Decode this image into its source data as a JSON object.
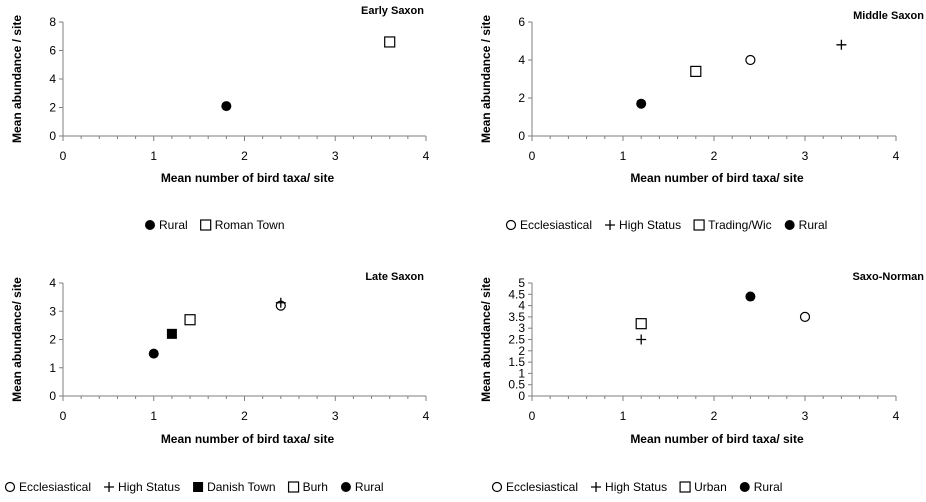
{
  "chart_data": [
    {
      "type": "scatter",
      "title": "Early Saxon",
      "xlabel": "Mean number of bird taxa/ site",
      "ylabel": "Mean abundance / site",
      "xlim": [
        0,
        4
      ],
      "ylim": [
        0,
        8
      ],
      "xticks": [
        0,
        1,
        2,
        3,
        4
      ],
      "yticks": [
        0,
        2,
        4,
        6,
        8
      ],
      "grid": false,
      "legend_position": "bottom",
      "series": [
        {
          "name": "Rural",
          "marker": "filled-circle",
          "points": [
            [
              1.8,
              2.1
            ]
          ]
        },
        {
          "name": "Roman Town",
          "marker": "open-square",
          "points": [
            [
              3.6,
              6.6
            ]
          ]
        }
      ]
    },
    {
      "type": "scatter",
      "title": "Middle Saxon",
      "xlabel": "Mean number of bird taxa/ site",
      "ylabel": "Mean abundance / site",
      "xlim": [
        0,
        4
      ],
      "ylim": [
        0,
        6
      ],
      "xticks": [
        0,
        1,
        2,
        3,
        4
      ],
      "yticks": [
        0,
        2,
        4,
        6
      ],
      "grid": false,
      "legend_position": "bottom",
      "series": [
        {
          "name": "Ecclesiastical",
          "marker": "open-circle",
          "points": [
            [
              2.4,
              4.0
            ]
          ]
        },
        {
          "name": "High Status",
          "marker": "plus",
          "points": [
            [
              3.4,
              4.8
            ]
          ]
        },
        {
          "name": "Trading/Wic",
          "marker": "open-square",
          "points": [
            [
              1.8,
              3.4
            ]
          ]
        },
        {
          "name": "Rural",
          "marker": "filled-circle",
          "points": [
            [
              1.2,
              1.7
            ]
          ]
        }
      ]
    },
    {
      "type": "scatter",
      "title": "Late Saxon",
      "xlabel": "Mean number of bird taxa/ site",
      "ylabel": "Mean abundance/ site",
      "xlim": [
        0,
        4
      ],
      "ylim": [
        0,
        4
      ],
      "xticks": [
        0,
        1,
        2,
        3,
        4
      ],
      "yticks": [
        0,
        1,
        2,
        3,
        4
      ],
      "grid": false,
      "legend_position": "bottom",
      "series": [
        {
          "name": "Ecclesiastical",
          "marker": "open-circle",
          "points": [
            [
              2.4,
              3.2
            ]
          ]
        },
        {
          "name": "High Status",
          "marker": "plus",
          "points": [
            [
              2.4,
              3.3
            ]
          ]
        },
        {
          "name": "Danish Town",
          "marker": "filled-square",
          "points": [
            [
              1.2,
              2.2
            ]
          ]
        },
        {
          "name": "Burh",
          "marker": "open-square",
          "points": [
            [
              1.4,
              2.7
            ]
          ]
        },
        {
          "name": "Rural",
          "marker": "filled-circle",
          "points": [
            [
              1.0,
              1.5
            ]
          ]
        }
      ]
    },
    {
      "type": "scatter",
      "title": "Saxo-Norman",
      "xlabel": "Mean number of bird taxa/ site",
      "ylabel": "Mean abundance/ site",
      "xlim": [
        0,
        4
      ],
      "ylim": [
        0,
        5
      ],
      "xticks": [
        0,
        1,
        2,
        3,
        4
      ],
      "yticks": [
        0,
        0.5,
        1,
        1.5,
        2,
        2.5,
        3,
        3.5,
        4,
        4.5,
        5
      ],
      "grid": false,
      "legend_position": "bottom",
      "series": [
        {
          "name": "Ecclesiastical",
          "marker": "open-circle",
          "points": [
            [
              3.0,
              3.5
            ]
          ]
        },
        {
          "name": "High Status",
          "marker": "plus",
          "points": [
            [
              1.2,
              2.5
            ]
          ]
        },
        {
          "name": "Urban",
          "marker": "open-square",
          "points": [
            [
              1.2,
              3.2
            ]
          ]
        },
        {
          "name": "Rural",
          "marker": "filled-circle",
          "points": [
            [
              2.4,
              4.4
            ]
          ]
        }
      ]
    }
  ]
}
